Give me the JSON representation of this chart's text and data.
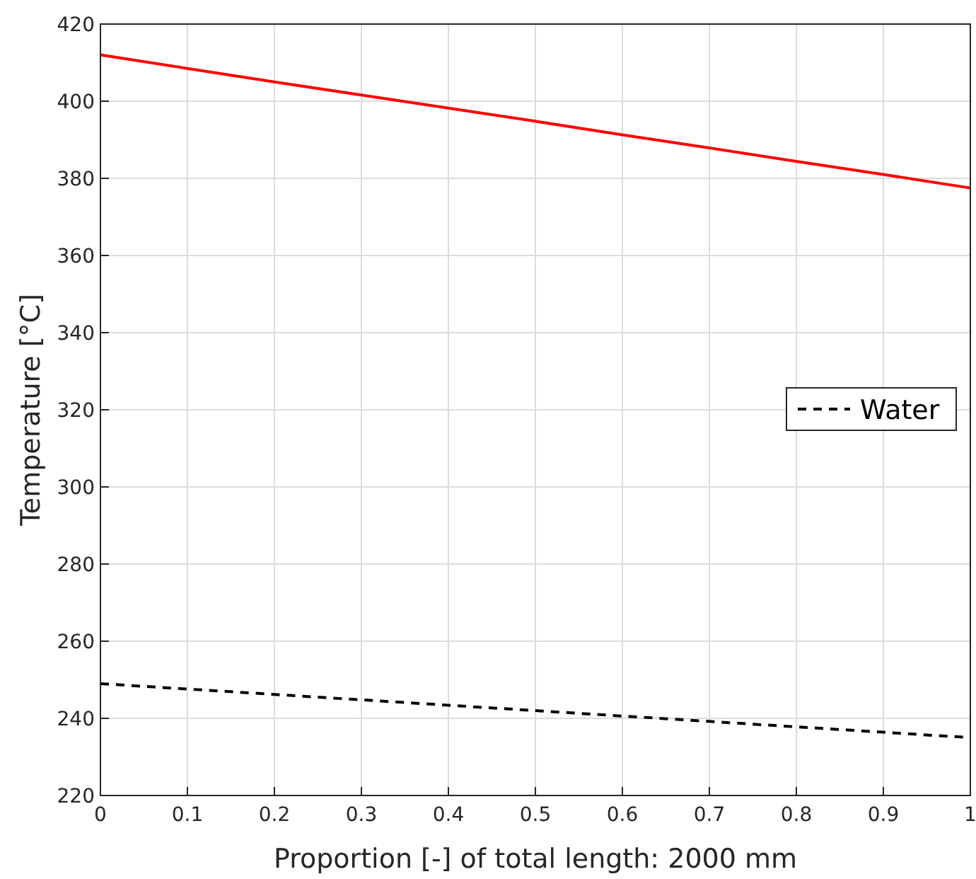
{
  "chart_data": {
    "type": "line",
    "xlabel": "Proportion [-] of total length: 2000 mm",
    "ylabel": "Temperature [°C]",
    "x": [
      0,
      0.1,
      0.2,
      0.3,
      0.4,
      0.5,
      0.6,
      0.7,
      0.8,
      0.9,
      1
    ],
    "series": [
      {
        "color": "#ff0000",
        "line_style": "solid",
        "values": [
          412,
          408.5,
          405,
          401.6,
          398.2,
          394.8,
          391.3,
          387.9,
          384.4,
          381,
          377.5
        ]
      },
      {
        "name": "Water",
        "color": "#000000",
        "line_style": "dashed",
        "values": [
          249,
          247.6,
          246.2,
          244.8,
          243.4,
          242,
          240.6,
          239.2,
          237.8,
          236.4,
          235
        ]
      }
    ],
    "xlim": [
      0,
      1
    ],
    "xticks": [
      0,
      0.1,
      0.2,
      0.3,
      0.4,
      0.5,
      0.6,
      0.7,
      0.8,
      0.9,
      1
    ],
    "ylim": [
      220,
      420
    ],
    "yticks": [
      220,
      240,
      260,
      280,
      300,
      320,
      340,
      360,
      380,
      400,
      420
    ],
    "grid": true,
    "legend": "right"
  }
}
